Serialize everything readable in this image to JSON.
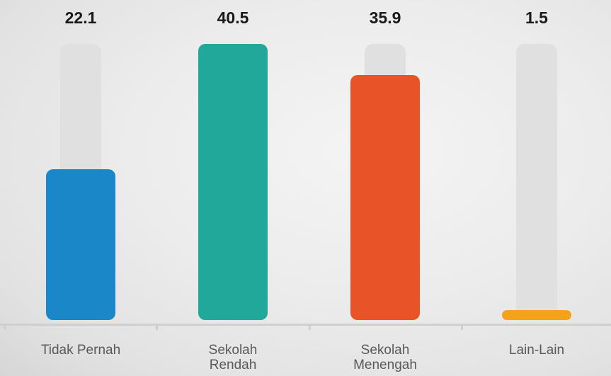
{
  "chart_data": {
    "type": "bar",
    "categories": [
      "Tidak Pernah",
      "Sekolah Rendah",
      "Sekolah Menengah",
      "Lain-Lain"
    ],
    "values": [
      22.1,
      40.5,
      35.9,
      1.5
    ],
    "colors": [
      "#1a87c9",
      "#22a89a",
      "#e85427",
      "#f4a21b"
    ],
    "track_color": "#e0e0e0"
  }
}
